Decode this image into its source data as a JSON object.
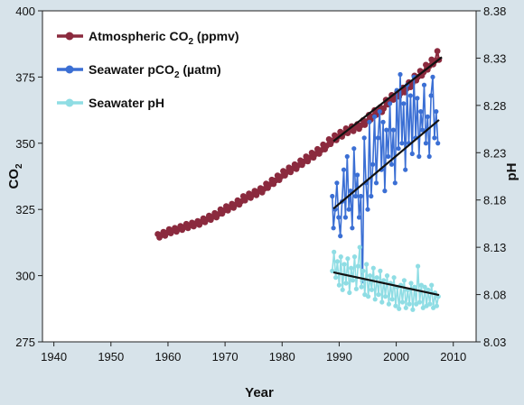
{
  "chart_data": {
    "type": "line",
    "xlabel": "Year",
    "ylabel_left_main": "CO",
    "ylabel_left_sub": "2",
    "ylabel_right": "pH",
    "xlim": [
      1938,
      2014
    ],
    "ylim_left": [
      275,
      400
    ],
    "ylim_right": [
      8.03,
      8.38
    ],
    "x_ticks": [
      1940,
      1950,
      1960,
      1970,
      1980,
      1990,
      2000,
      2010
    ],
    "y_ticks_left": [
      275,
      300,
      325,
      350,
      375,
      400
    ],
    "y_ticks_right": [
      "8.03",
      "8.08",
      "8.13",
      "8.18",
      "8.23",
      "8.28",
      "8.33",
      "8.38"
    ],
    "legend": [
      {
        "text": "Atmospheric CO",
        "sub": "2",
        "tail": " (ppmv)",
        "color": "#8b2a3e"
      },
      {
        "text": "Seawater pCO",
        "sub": "2",
        "tail": " (µatm)",
        "color": "#3b6fd4"
      },
      {
        "text": "Seawater pH",
        "sub": "",
        "tail": "",
        "color": "#8fdde4"
      }
    ],
    "series": [
      {
        "name": "Atmospheric CO2 (ppmv)",
        "axis": "left",
        "color": "#8b2a3e",
        "points": [
          [
            1958.2,
            315.7
          ],
          [
            1958.5,
            314.4
          ],
          [
            1958.8,
            315.3
          ],
          [
            1959.2,
            316.5
          ],
          [
            1959.5,
            315.1
          ],
          [
            1959.8,
            316.2
          ],
          [
            1960.2,
            317.5
          ],
          [
            1960.5,
            316.0
          ],
          [
            1960.8,
            317.0
          ],
          [
            1961.2,
            318.0
          ],
          [
            1961.5,
            316.6
          ],
          [
            1961.8,
            317.6
          ],
          [
            1962.2,
            318.7
          ],
          [
            1962.5,
            317.3
          ],
          [
            1962.8,
            318.3
          ],
          [
            1963.2,
            319.5
          ],
          [
            1963.5,
            318.0
          ],
          [
            1963.8,
            319.0
          ],
          [
            1964.2,
            320.0
          ],
          [
            1964.5,
            318.6
          ],
          [
            1964.8,
            319.6
          ],
          [
            1965.2,
            320.6
          ],
          [
            1965.5,
            319.2
          ],
          [
            1965.8,
            320.3
          ],
          [
            1966.2,
            321.6
          ],
          [
            1966.5,
            320.2
          ],
          [
            1966.8,
            321.3
          ],
          [
            1967.2,
            322.6
          ],
          [
            1967.5,
            321.1
          ],
          [
            1967.8,
            322.2
          ],
          [
            1968.2,
            323.6
          ],
          [
            1968.5,
            322.0
          ],
          [
            1968.8,
            323.2
          ],
          [
            1969.2,
            325.0
          ],
          [
            1969.5,
            323.4
          ],
          [
            1969.8,
            324.6
          ],
          [
            1970.2,
            326.2
          ],
          [
            1970.5,
            324.6
          ],
          [
            1970.8,
            325.8
          ],
          [
            1971.2,
            327.1
          ],
          [
            1971.5,
            325.6
          ],
          [
            1971.8,
            326.8
          ],
          [
            1972.2,
            328.4
          ],
          [
            1972.5,
            326.8
          ],
          [
            1972.8,
            328.0
          ],
          [
            1973.2,
            330.0
          ],
          [
            1973.5,
            328.4
          ],
          [
            1973.8,
            329.6
          ],
          [
            1974.2,
            331.0
          ],
          [
            1974.5,
            329.4
          ],
          [
            1974.8,
            330.6
          ],
          [
            1975.2,
            332.0
          ],
          [
            1975.5,
            330.4
          ],
          [
            1975.8,
            331.7
          ],
          [
            1976.2,
            333.0
          ],
          [
            1976.5,
            331.4
          ],
          [
            1976.8,
            332.7
          ],
          [
            1977.2,
            334.7
          ],
          [
            1977.5,
            333.1
          ],
          [
            1977.8,
            334.4
          ],
          [
            1978.2,
            336.2
          ],
          [
            1978.5,
            334.6
          ],
          [
            1978.8,
            335.9
          ],
          [
            1979.2,
            337.8
          ],
          [
            1979.5,
            336.1
          ],
          [
            1979.8,
            337.4
          ],
          [
            1980.2,
            339.5
          ],
          [
            1980.5,
            337.8
          ],
          [
            1980.8,
            339.1
          ],
          [
            1981.2,
            340.8
          ],
          [
            1981.5,
            339.1
          ],
          [
            1981.8,
            340.4
          ],
          [
            1982.2,
            342.0
          ],
          [
            1982.5,
            340.3
          ],
          [
            1982.8,
            341.6
          ],
          [
            1983.2,
            343.5
          ],
          [
            1983.5,
            341.8
          ],
          [
            1983.8,
            343.1
          ],
          [
            1984.2,
            345.0
          ],
          [
            1984.5,
            343.2
          ],
          [
            1984.8,
            344.5
          ],
          [
            1985.2,
            346.4
          ],
          [
            1985.5,
            344.6
          ],
          [
            1985.8,
            345.9
          ],
          [
            1986.2,
            347.8
          ],
          [
            1986.5,
            346.0
          ],
          [
            1986.8,
            347.3
          ],
          [
            1987.2,
            349.5
          ],
          [
            1987.5,
            347.7
          ],
          [
            1987.8,
            349.0
          ],
          [
            1988.2,
            351.5
          ],
          [
            1988.5,
            349.7
          ],
          [
            1988.8,
            351.0
          ],
          [
            1989.2,
            353.0
          ],
          [
            1989.5,
            351.2
          ],
          [
            1989.8,
            352.5
          ],
          [
            1990.2,
            354.3
          ],
          [
            1990.5,
            352.5
          ],
          [
            1990.8,
            353.8
          ],
          [
            1991.2,
            355.6
          ],
          [
            1991.5,
            353.8
          ],
          [
            1991.8,
            355.1
          ],
          [
            1992.2,
            356.4
          ],
          [
            1992.5,
            354.6
          ],
          [
            1992.8,
            355.9
          ],
          [
            1993.2,
            357.2
          ],
          [
            1993.5,
            355.4
          ],
          [
            1993.8,
            356.7
          ],
          [
            1994.2,
            358.7
          ],
          [
            1994.5,
            356.9
          ],
          [
            1994.8,
            358.2
          ],
          [
            1995.2,
            360.7
          ],
          [
            1995.5,
            358.9
          ],
          [
            1995.8,
            360.2
          ],
          [
            1996.2,
            362.5
          ],
          [
            1996.5,
            360.7
          ],
          [
            1996.8,
            362.0
          ],
          [
            1997.2,
            363.6
          ],
          [
            1997.5,
            361.8
          ],
          [
            1997.8,
            363.1
          ],
          [
            1998.2,
            366.4
          ],
          [
            1998.5,
            364.6
          ],
          [
            1998.8,
            365.9
          ],
          [
            1999.2,
            368.2
          ],
          [
            1999.5,
            366.4
          ],
          [
            1999.8,
            367.7
          ],
          [
            2000.2,
            369.4
          ],
          [
            2000.5,
            367.6
          ],
          [
            2000.8,
            368.9
          ],
          [
            2001.2,
            371.0
          ],
          [
            2001.5,
            369.2
          ],
          [
            2001.8,
            370.5
          ],
          [
            2002.2,
            373.0
          ],
          [
            2002.5,
            371.2
          ],
          [
            2002.8,
            372.5
          ],
          [
            2003.2,
            375.5
          ],
          [
            2003.5,
            373.7
          ],
          [
            2003.8,
            375.0
          ],
          [
            2004.2,
            377.3
          ],
          [
            2004.5,
            375.5
          ],
          [
            2004.8,
            376.8
          ],
          [
            2005.2,
            379.6
          ],
          [
            2005.5,
            377.8
          ],
          [
            2005.8,
            379.1
          ],
          [
            2006.2,
            381.6
          ],
          [
            2006.5,
            379.8
          ],
          [
            2006.8,
            381.1
          ],
          [
            2007.2,
            384.8
          ],
          [
            2007.5,
            381.5
          ]
        ],
        "trend": [
          [
            1989,
            350.8
          ],
          [
            2008,
            382.5
          ]
        ]
      },
      {
        "name": "Seawater pCO2 (µatm)",
        "axis": "left",
        "color": "#3b6fd4",
        "points": [
          [
            1988.8,
            330
          ],
          [
            1989.0,
            318
          ],
          [
            1989.3,
            325
          ],
          [
            1989.6,
            335
          ],
          [
            1989.9,
            322
          ],
          [
            1990.2,
            315
          ],
          [
            1990.5,
            328
          ],
          [
            1990.8,
            340
          ],
          [
            1991.1,
            322
          ],
          [
            1991.4,
            345
          ],
          [
            1991.7,
            325
          ],
          [
            1992.0,
            332
          ],
          [
            1992.3,
            318
          ],
          [
            1992.6,
            348
          ],
          [
            1992.9,
            330
          ],
          [
            1993.2,
            338
          ],
          [
            1993.5,
            322
          ],
          [
            1993.8,
            330
          ],
          [
            1994.1,
            298
          ],
          [
            1994.4,
            352
          ],
          [
            1994.7,
            335
          ],
          [
            1995.0,
            325
          ],
          [
            1995.3,
            358
          ],
          [
            1995.6,
            330
          ],
          [
            1995.9,
            342
          ],
          [
            1996.2,
            360
          ],
          [
            1996.5,
            335
          ],
          [
            1996.8,
            352
          ],
          [
            1997.1,
            362
          ],
          [
            1997.4,
            340
          ],
          [
            1997.7,
            358
          ],
          [
            1998.0,
            332
          ],
          [
            1998.3,
            355
          ],
          [
            1998.6,
            345
          ],
          [
            1998.9,
            365
          ],
          [
            1999.2,
            342
          ],
          [
            1999.5,
            355
          ],
          [
            1999.8,
            335
          ],
          [
            2000.1,
            370
          ],
          [
            2000.4,
            348
          ],
          [
            2000.7,
            376
          ],
          [
            2001.0,
            350
          ],
          [
            2001.3,
            365
          ],
          [
            2001.6,
            340
          ],
          [
            2001.9,
            372
          ],
          [
            2002.2,
            350
          ],
          [
            2002.5,
            368
          ],
          [
            2002.8,
            346
          ],
          [
            2003.1,
            375
          ],
          [
            2003.4,
            352
          ],
          [
            2003.7,
            367
          ],
          [
            2004.0,
            345
          ],
          [
            2004.3,
            362
          ],
          [
            2004.6,
            355
          ],
          [
            2004.9,
            372
          ],
          [
            2005.2,
            350
          ],
          [
            2005.5,
            360
          ],
          [
            2005.8,
            345
          ],
          [
            2006.1,
            368
          ],
          [
            2006.4,
            375
          ],
          [
            2006.7,
            352
          ],
          [
            2007.0,
            362
          ],
          [
            2007.3,
            350
          ]
        ],
        "trend": [
          [
            1989,
            325.3
          ],
          [
            2007.5,
            358.8
          ]
        ]
      },
      {
        "name": "Seawater pH",
        "axis": "right",
        "color": "#8fdde4",
        "points": [
          [
            1988.8,
            8.105
          ],
          [
            1989.1,
            8.125
          ],
          [
            1989.4,
            8.098
          ],
          [
            1989.7,
            8.115
          ],
          [
            1990.0,
            8.09
          ],
          [
            1990.3,
            8.12
          ],
          [
            1990.6,
            8.085
          ],
          [
            1990.9,
            8.112
          ],
          [
            1991.2,
            8.092
          ],
          [
            1991.5,
            8.118
          ],
          [
            1991.8,
            8.082
          ],
          [
            1992.1,
            8.108
          ],
          [
            1992.4,
            8.095
          ],
          [
            1992.7,
            8.12
          ],
          [
            1993.0,
            8.086
          ],
          [
            1993.3,
            8.11
          ],
          [
            1993.6,
            8.13
          ],
          [
            1993.9,
            8.088
          ],
          [
            1994.2,
            8.105
          ],
          [
            1994.5,
            8.08
          ],
          [
            1994.8,
            8.112
          ],
          [
            1995.1,
            8.078
          ],
          [
            1995.4,
            8.1
          ],
          [
            1995.7,
            8.085
          ],
          [
            1996.0,
            8.108
          ],
          [
            1996.3,
            8.075
          ],
          [
            1996.6,
            8.098
          ],
          [
            1996.9,
            8.08
          ],
          [
            1997.2,
            8.105
          ],
          [
            1997.5,
            8.072
          ],
          [
            1997.8,
            8.095
          ],
          [
            1998.1,
            8.078
          ],
          [
            1998.4,
            8.1
          ],
          [
            1998.7,
            8.07
          ],
          [
            1999.0,
            8.092
          ],
          [
            1999.3,
            8.075
          ],
          [
            1999.6,
            8.098
          ],
          [
            1999.9,
            8.068
          ],
          [
            2000.2,
            8.088
          ],
          [
            2000.5,
            8.065
          ],
          [
            2000.8,
            8.09
          ],
          [
            2001.1,
            8.072
          ],
          [
            2001.4,
            8.095
          ],
          [
            2001.7,
            8.066
          ],
          [
            2002.0,
            8.085
          ],
          [
            2002.3,
            8.07
          ],
          [
            2002.6,
            8.092
          ],
          [
            2002.9,
            8.064
          ],
          [
            2003.2,
            8.088
          ],
          [
            2003.5,
            8.07
          ],
          [
            2003.8,
            8.11
          ],
          [
            2004.1,
            8.072
          ],
          [
            2004.4,
            8.09
          ],
          [
            2004.7,
            8.066
          ],
          [
            2005.0,
            8.088
          ],
          [
            2005.3,
            8.068
          ],
          [
            2005.6,
            8.085
          ],
          [
            2005.9,
            8.07
          ],
          [
            2006.2,
            8.09
          ],
          [
            2006.5,
            8.066
          ],
          [
            2006.8,
            8.082
          ],
          [
            2007.1,
            8.068
          ],
          [
            2007.4,
            8.078
          ]
        ],
        "trend": [
          [
            1989,
            8.1035
          ],
          [
            2007.5,
            8.0795
          ]
        ]
      }
    ]
  }
}
